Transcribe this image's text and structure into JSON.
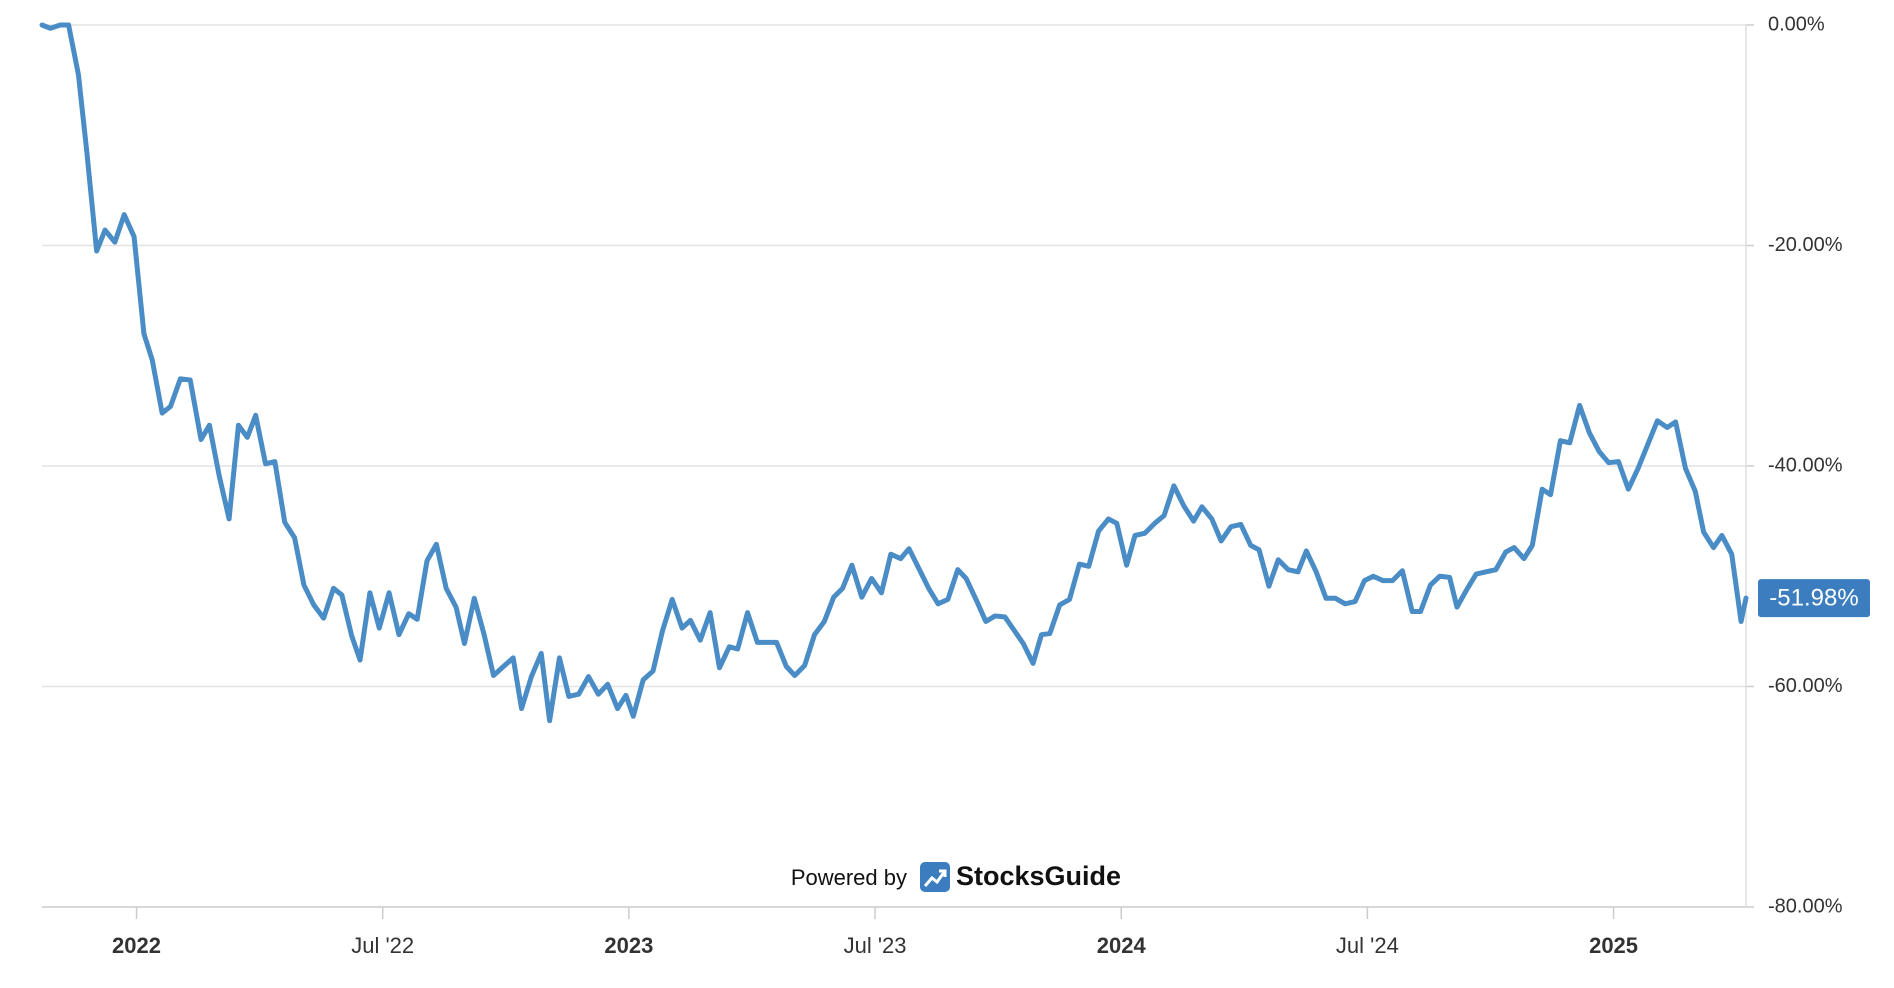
{
  "chart_data": {
    "type": "line",
    "color": "#4a8cc6",
    "badge_color": "#3b7dbf",
    "grid": true,
    "watermark": {
      "prefix": "Powered by",
      "brand": "StocksGuide"
    },
    "xlim": [
      2021.808,
      2025.269
    ],
    "ylim": [
      -80,
      0
    ],
    "xticks": [
      2022,
      {
        "value": 2022.5,
        "label": "Jul '22"
      },
      2023,
      {
        "value": 2023.5,
        "label": "Jul '23"
      },
      2024,
      {
        "value": 2024.5,
        "label": "Jul '24"
      },
      2025
    ],
    "yticks": [
      {
        "value": 0,
        "label": "0.00%"
      },
      {
        "value": -20,
        "label": "-20.00%"
      },
      {
        "value": -40,
        "label": "-40.00%"
      },
      {
        "value": -60,
        "label": "-60.00%"
      },
      {
        "value": -80,
        "label": "-80.00%"
      }
    ],
    "x": [
      2021.808,
      2021.825,
      2021.845,
      2021.862,
      2021.882,
      2021.899,
      2021.919,
      2021.936,
      2021.956,
      2021.975,
      2021.995,
      2022.015,
      2022.032,
      2022.052,
      2022.069,
      2022.089,
      2022.109,
      2022.131,
      2022.148,
      2022.168,
      2022.188,
      2022.207,
      2022.225,
      2022.242,
      2022.262,
      2022.281,
      2022.301,
      2022.321,
      2022.34,
      2022.36,
      2022.38,
      2022.4,
      2022.417,
      2022.437,
      2022.454,
      2022.474,
      2022.493,
      2022.513,
      2022.533,
      2022.553,
      2022.57,
      2022.59,
      2022.609,
      2022.629,
      2022.649,
      2022.666,
      2022.686,
      2022.706,
      2022.725,
      2022.745,
      2022.765,
      2022.782,
      2022.802,
      2022.822,
      2022.839,
      2022.859,
      2022.878,
      2022.898,
      2022.918,
      2022.938,
      2022.957,
      2022.977,
      2022.994,
      2023.009,
      2023.029,
      2023.049,
      2023.068,
      2023.088,
      2023.108,
      2023.125,
      2023.145,
      2023.165,
      2023.184,
      2023.204,
      2023.221,
      2023.241,
      2023.261,
      2023.281,
      2023.3,
      2023.32,
      2023.337,
      2023.357,
      2023.377,
      2023.397,
      2023.416,
      2023.434,
      2023.453,
      2023.473,
      2023.493,
      2023.513,
      2023.532,
      2023.552,
      2023.569,
      2023.589,
      2023.609,
      2023.628,
      2023.648,
      2023.668,
      2023.685,
      2023.705,
      2023.725,
      2023.744,
      2023.764,
      2023.784,
      2023.801,
      2023.821,
      2023.838,
      2023.855,
      2023.875,
      2023.895,
      2023.915,
      2023.934,
      2023.954,
      2023.974,
      2023.991,
      2024.011,
      2024.028,
      2024.048,
      2024.068,
      2024.087,
      2024.107,
      2024.127,
      2024.147,
      2024.164,
      2024.184,
      2024.203,
      2024.223,
      2024.243,
      2024.263,
      2024.28,
      2024.3,
      2024.319,
      2024.339,
      2024.359,
      2024.376,
      2024.396,
      2024.416,
      2024.435,
      2024.455,
      2024.475,
      2024.494,
      2024.512,
      2024.532,
      2024.551,
      2024.571,
      2024.591,
      2024.608,
      2024.628,
      2024.647,
      2024.667,
      2024.682,
      2024.702,
      2024.721,
      2024.741,
      2024.761,
      2024.781,
      2024.798,
      2024.818,
      2024.835,
      2024.855,
      2024.872,
      2024.892,
      2024.911,
      2024.931,
      2024.951,
      2024.971,
      2024.99,
      2025.01,
      2025.03,
      2025.05,
      2025.069,
      2025.089,
      2025.109,
      2025.126,
      2025.146,
      2025.166,
      2025.183,
      2025.203,
      2025.22,
      2025.24,
      2025.259,
      2025.269
    ],
    "values": [
      0,
      -0.3,
      0,
      0,
      -4.5,
      -11.5,
      -20.5,
      -18.6,
      -19.7,
      -17.2,
      -19.2,
      -28,
      -30.4,
      -35.2,
      -34.6,
      -32.1,
      -32.2,
      -37.6,
      -36.3,
      -40.9,
      -44.8,
      -36.3,
      -37.4,
      -35.4,
      -39.8,
      -39.6,
      -45.1,
      -46.5,
      -50.8,
      -52.6,
      -53.8,
      -51.1,
      -51.7,
      -55.4,
      -57.6,
      -51.5,
      -54.7,
      -51.5,
      -55.3,
      -53.4,
      -53.9,
      -48.6,
      -47.1,
      -51.1,
      -52.8,
      -56.1,
      -52.0,
      -55.3,
      -59.0,
      -58.2,
      -57.4,
      -62.0,
      -59.1,
      -57.0,
      -63.1,
      -57.4,
      -60.9,
      -60.7,
      -59.1,
      -60.7,
      -59.8,
      -62.0,
      -60.8,
      -62.7,
      -59.4,
      -58.6,
      -55.0,
      -52.1,
      -54.7,
      -54.0,
      -55.8,
      -53.3,
      -58.3,
      -56.4,
      -56.6,
      -53.3,
      -56.0,
      -56.0,
      -56.0,
      -58.2,
      -59.0,
      -58.1,
      -55.3,
      -54.1,
      -51.9,
      -51.1,
      -49.0,
      -51.9,
      -50.2,
      -51.5,
      -48.0,
      -48.4,
      -47.5,
      -49.3,
      -51.1,
      -52.5,
      -52.1,
      -49.4,
      -50.2,
      -52.1,
      -54.1,
      -53.6,
      -53.7,
      -55.0,
      -56.1,
      -57.9,
      -55.3,
      -55.2,
      -52.6,
      -52.1,
      -48.9,
      -49.1,
      -45.9,
      -44.8,
      -45.2,
      -49.0,
      -46.3,
      -46.1,
      -45.2,
      -44.5,
      -41.8,
      -43.6,
      -45.0,
      -43.7,
      -44.8,
      -46.8,
      -45.5,
      -45.3,
      -47.2,
      -47.6,
      -50.9,
      -48.5,
      -49.4,
      -49.6,
      -47.7,
      -49.6,
      -52.0,
      -52.0,
      -52.5,
      -52.3,
      -50.4,
      -50.0,
      -50.4,
      -50.4,
      -49.5,
      -53.2,
      -53.2,
      -50.8,
      -50.0,
      -50.1,
      -52.8,
      -51.2,
      -49.8,
      -49.6,
      -49.4,
      -47.8,
      -47.4,
      -48.4,
      -47.2,
      -42.1,
      -42.6,
      -37.7,
      -37.9,
      -34.5,
      -37.0,
      -38.7,
      -39.7,
      -39.6,
      -42.1,
      -40.2,
      -38.1,
      -35.9,
      -36.5,
      -36.0,
      -40.2,
      -42.3,
      -46.0,
      -47.4,
      -46.3,
      -48.0,
      -54.1,
      -51.98
    ],
    "value_labels": [
      null,
      null,
      null,
      null,
      null,
      null,
      null,
      null,
      null,
      null,
      null,
      null,
      null,
      null,
      null,
      null,
      null,
      null,
      null,
      null,
      null,
      null,
      null,
      null,
      null,
      null,
      null,
      null,
      null,
      null,
      null,
      null,
      null,
      null,
      null,
      null,
      null,
      null,
      null,
      null,
      null,
      null,
      null,
      null,
      null,
      null,
      null,
      null,
      null,
      null,
      null,
      null,
      null,
      null,
      null,
      null,
      null,
      null,
      null,
      null,
      null,
      null,
      null,
      null,
      null,
      null,
      null,
      null,
      null,
      null,
      null,
      null,
      null,
      null,
      null,
      null,
      null,
      null,
      null,
      null,
      null,
      null,
      null,
      null,
      null,
      null,
      null,
      null,
      null,
      null,
      null,
      null,
      null,
      null,
      null,
      null,
      null,
      null,
      null,
      null,
      null,
      null,
      null,
      null,
      null,
      null,
      null,
      null,
      null,
      null,
      null,
      null,
      null,
      null,
      null,
      null,
      null,
      null,
      null,
      null,
      null,
      null,
      null,
      null,
      null,
      null,
      null,
      null,
      null,
      null,
      null,
      null,
      null,
      null,
      null,
      null,
      null,
      null,
      null,
      null,
      null,
      null,
      null,
      null,
      null,
      null,
      null,
      null,
      null,
      null,
      null,
      null,
      null,
      null,
      null,
      null,
      null,
      null,
      null,
      null,
      null,
      null,
      null,
      null,
      null,
      null,
      null,
      null,
      null,
      null,
      null,
      null,
      null,
      null,
      null,
      null,
      null,
      null,
      null,
      null,
      null,
      "-51.98%"
    ]
  }
}
